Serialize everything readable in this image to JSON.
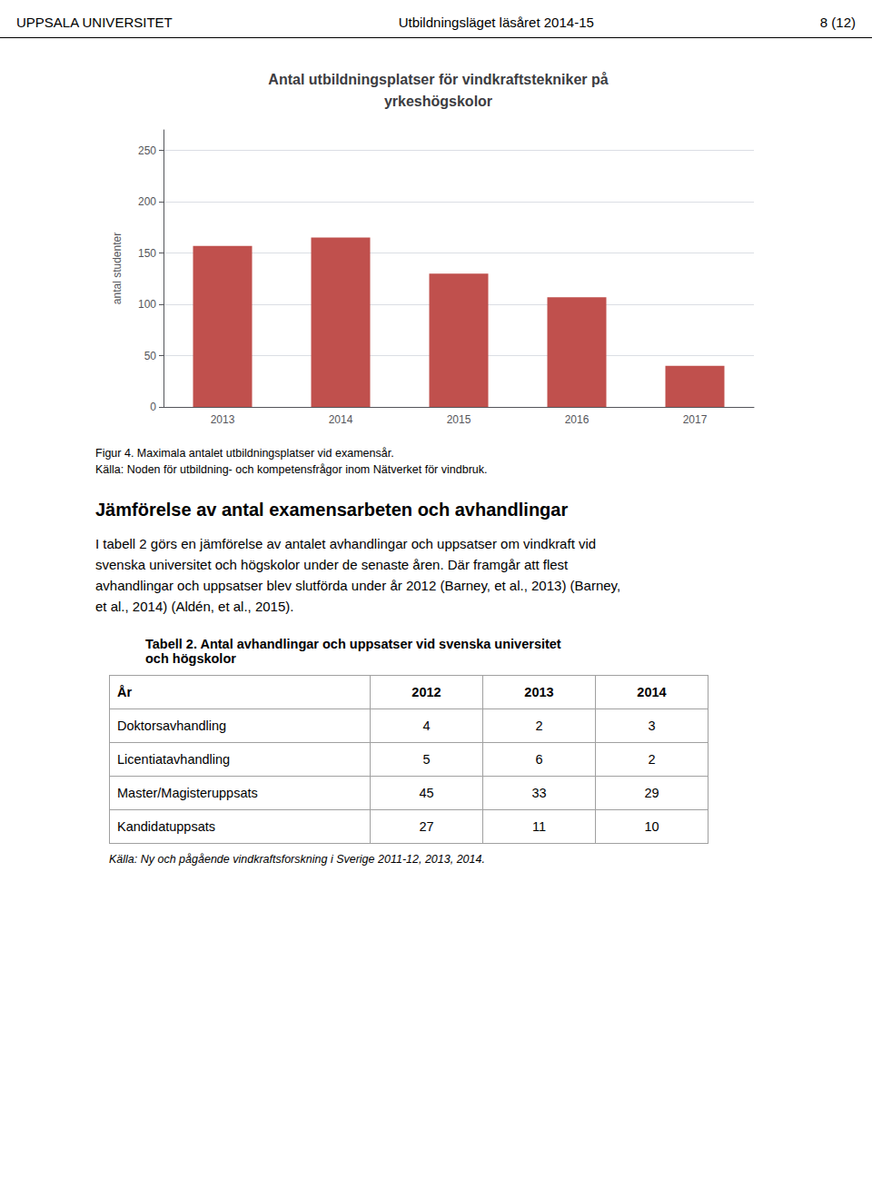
{
  "chart_data": {
    "type": "bar",
    "title": "Antal utbildningsplatser för vindkraftstekniker på\nyrkeshögskolor",
    "categories": [
      2013,
      2014,
      2015,
      2016,
      2017
    ],
    "values": [
      157,
      165,
      130,
      107,
      40
    ],
    "color": "#c0504d",
    "ylabel": "antal studenter",
    "ylim": [
      0,
      270
    ],
    "yticks": [
      0,
      50,
      100,
      150,
      200,
      250
    ],
    "grid": true
  },
  "page": {
    "header_left": "UPPSALA UNIVERSITET",
    "header_center": "Utbildningsläget läsåret 2014-15",
    "header_right": "8 (12)",
    "figcaptions": [
      "Figur 4. Maximala antalet utbildningsplatser vid examensår.",
      "Källa: Noden för utbildning- och kompetensfrågor inom Nätverket för vindbruk."
    ],
    "section_heading": "Jämförelse av antal examensarbeten och avhandlingar",
    "body_lines": [
      "I tabell 2 görs en jämförelse av antalet avhandlingar och uppsatser om vindkraft vid",
      "svenska universitet och högskolor under de senaste åren. Där framgår att flest",
      "avhandlingar och uppsatser blev slutförda under år 2012 (Barney, et al., 2013) (Barney,",
      "et al., 2014) (Aldén, et al., 2015)."
    ],
    "table_heading": [
      "Tabell 2. Antal avhandlingar och uppsatser vid svenska universitet",
      "och högskolor"
    ],
    "table_col_headers": [
      "År",
      "2012",
      "2013",
      "2014"
    ],
    "table_rows": [
      [
        "Doktorsavhandling",
        "4",
        "2",
        "3"
      ],
      [
        "Licentiatavhandling",
        "5",
        "6",
        "2"
      ],
      [
        "Master/Magisteruppsats",
        "45",
        "33",
        "29"
      ],
      [
        "Kandidatuppsats",
        "27",
        "11",
        "10"
      ]
    ],
    "table_caption": "Källa: Ny och pågående vindkraftsforskning i Sverige 2011-12, 2013, 2014."
  }
}
